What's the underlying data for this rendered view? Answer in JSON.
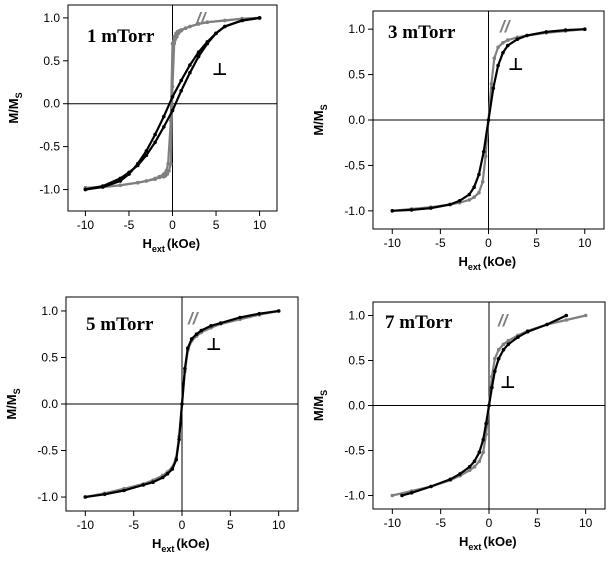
{
  "colors": {
    "parallel": "#808080",
    "perpendicular": "#000000",
    "axis": "#000000"
  },
  "chart_data": [
    {
      "type": "line",
      "title": "1 mTorr",
      "xlabel": "H",
      "xlabel_sub": "ext",
      "xlabel_unit": "(kOe)",
      "ylabel": "M/M",
      "ylabel_sub": "S",
      "xlim": [
        -12,
        12
      ],
      "ylim": [
        -1.25,
        1.15
      ],
      "xticks": [
        -10,
        -5,
        0,
        5,
        10
      ],
      "xtick_labels": [
        "-10",
        "-5",
        "0",
        "5",
        "10"
      ],
      "yticks": [
        -1.0,
        -0.5,
        0.0,
        0.5,
        1.0
      ],
      "ytick_labels": [
        "-1.0",
        "-0.5",
        "0.0",
        "0.5",
        "1.0"
      ],
      "series": [
        {
          "name": "//",
          "kind": "parallel",
          "x": [
            -10,
            -8,
            -6,
            -4,
            -3,
            -2,
            -1.5,
            -1,
            -0.7,
            -0.5,
            -0.2,
            0,
            0.2,
            0.4,
            0.6,
            0.8,
            1,
            1.5,
            2,
            3,
            4,
            6,
            8,
            10
          ],
          "y": [
            -0.98,
            -0.97,
            -0.95,
            -0.92,
            -0.9,
            -0.87,
            -0.85,
            -0.82,
            -0.78,
            -0.7,
            -0.2,
            0.7,
            0.78,
            0.82,
            0.84,
            0.85,
            0.86,
            0.88,
            0.9,
            0.93,
            0.95,
            0.97,
            0.99,
            1.0
          ],
          "x_return": [
            10,
            8,
            6,
            4,
            3,
            2,
            1.5,
            1,
            0.7,
            0.5,
            0.2,
            0,
            -0.2,
            -0.4,
            -0.6,
            -0.8,
            -1,
            -1.5,
            -2,
            -3,
            -4,
            -6,
            -8,
            -10
          ],
          "y_return": [
            1.0,
            0.99,
            0.97,
            0.95,
            0.93,
            0.9,
            0.88,
            0.85,
            0.82,
            0.78,
            0.7,
            0.2,
            -0.7,
            -0.78,
            -0.82,
            -0.84,
            -0.85,
            -0.86,
            -0.88,
            -0.9,
            -0.92,
            -0.95,
            -0.97,
            -0.98
          ]
        },
        {
          "name": "⊥",
          "kind": "perpendicular",
          "x": [
            -10,
            -8,
            -6,
            -5,
            -4,
            -3,
            -2,
            -1,
            0,
            1,
            2,
            3,
            4,
            5,
            6,
            8,
            10
          ],
          "y": [
            -1.0,
            -0.96,
            -0.87,
            -0.8,
            -0.72,
            -0.6,
            -0.45,
            -0.27,
            -0.08,
            0.15,
            0.36,
            0.55,
            0.7,
            0.82,
            0.9,
            0.97,
            1.0
          ],
          "x_return": [
            10,
            8,
            6,
            5,
            4,
            3,
            2,
            1,
            0,
            -1,
            -2,
            -3,
            -4,
            -5,
            -6,
            -8,
            -10
          ],
          "y_return": [
            1.0,
            0.97,
            0.9,
            0.82,
            0.72,
            0.6,
            0.45,
            0.27,
            0.08,
            -0.15,
            -0.36,
            -0.55,
            -0.7,
            -0.82,
            -0.9,
            -0.97,
            -1.0
          ]
        }
      ]
    },
    {
      "type": "line",
      "title": "3 mTorr",
      "xlabel": "H",
      "xlabel_sub": "ext",
      "xlabel_unit": "(kOe)",
      "ylabel": "M/M",
      "ylabel_sub": "S",
      "xlim": [
        -12,
        12
      ],
      "ylim": [
        -1.2,
        1.2
      ],
      "xticks": [
        -10,
        -5,
        0,
        5,
        10
      ],
      "xtick_labels": [
        "-10",
        "-5",
        "0",
        "5",
        "10"
      ],
      "yticks": [
        -1.0,
        -0.5,
        0.0,
        0.5,
        1.0
      ],
      "ytick_labels": [
        "-1.0",
        "-0.5",
        "0.0",
        "0.5",
        "1.0"
      ],
      "series": [
        {
          "name": "//",
          "kind": "parallel",
          "x": [
            -10,
            -8,
            -6,
            -4,
            -3,
            -2,
            -1.5,
            -1,
            -0.6,
            -0.3,
            0,
            0.3,
            0.6,
            1,
            1.5,
            2,
            3,
            4,
            6,
            8,
            10
          ],
          "y": [
            -1.0,
            -0.98,
            -0.96,
            -0.93,
            -0.91,
            -0.88,
            -0.85,
            -0.8,
            -0.68,
            -0.4,
            0.0,
            0.4,
            0.68,
            0.8,
            0.85,
            0.88,
            0.91,
            0.93,
            0.96,
            0.98,
            1.0
          ],
          "x_return": [],
          "y_return": []
        },
        {
          "name": "⊥",
          "kind": "perpendicular",
          "x": [
            -10,
            -8,
            -6,
            -4,
            -3,
            -2,
            -1.5,
            -1,
            -0.5,
            0,
            0.5,
            1,
            1.5,
            2,
            3,
            4,
            6,
            8,
            10
          ],
          "y": [
            -1.0,
            -0.99,
            -0.97,
            -0.93,
            -0.89,
            -0.82,
            -0.74,
            -0.6,
            -0.35,
            0.0,
            0.35,
            0.6,
            0.74,
            0.82,
            0.89,
            0.93,
            0.97,
            0.99,
            1.0
          ],
          "x_return": [],
          "y_return": []
        }
      ]
    },
    {
      "type": "line",
      "title": "5 mTorr",
      "xlabel": "H",
      "xlabel_sub": "ext",
      "xlabel_unit": "(kOe)",
      "ylabel": "M/M",
      "ylabel_sub": "S",
      "xlim": [
        -12,
        12
      ],
      "ylim": [
        -1.15,
        1.15
      ],
      "xticks": [
        -10,
        -5,
        0,
        5,
        10
      ],
      "xtick_labels": [
        "-10",
        "-5",
        "0",
        "5",
        "10"
      ],
      "yticks": [
        -1.0,
        -0.5,
        0.0,
        0.5,
        1.0
      ],
      "ytick_labels": [
        "-1.0",
        "-0.5",
        "0.0",
        "0.5",
        "1.0"
      ],
      "series": [
        {
          "name": "//",
          "kind": "parallel",
          "x": [
            -10,
            -8,
            -6,
            -4,
            -3,
            -2,
            -1.5,
            -1,
            -0.6,
            -0.3,
            0,
            0.3,
            0.6,
            1,
            1.5,
            2,
            3,
            4,
            6,
            8,
            10
          ],
          "y": [
            -1.0,
            -0.96,
            -0.91,
            -0.86,
            -0.82,
            -0.77,
            -0.73,
            -0.68,
            -0.58,
            -0.35,
            0.0,
            0.35,
            0.58,
            0.68,
            0.73,
            0.77,
            0.82,
            0.86,
            0.91,
            0.96,
            1.0
          ],
          "x_return": [],
          "y_return": []
        },
        {
          "name": "⊥",
          "kind": "perpendicular",
          "x": [
            -10,
            -8,
            -6,
            -4,
            -3,
            -2,
            -1.5,
            -1,
            -0.6,
            -0.3,
            0,
            0.3,
            0.6,
            1,
            1.5,
            2,
            3,
            4,
            6,
            8,
            10
          ],
          "y": [
            -1.0,
            -0.97,
            -0.93,
            -0.87,
            -0.84,
            -0.79,
            -0.75,
            -0.7,
            -0.6,
            -0.38,
            0.0,
            0.38,
            0.6,
            0.7,
            0.75,
            0.79,
            0.84,
            0.87,
            0.93,
            0.97,
            1.0
          ],
          "x_return": [],
          "y_return": []
        }
      ]
    },
    {
      "type": "line",
      "title": "7 mTorr",
      "xlabel": "H",
      "xlabel_sub": "ext",
      "xlabel_unit": "(kOe)",
      "ylabel": "M/M",
      "ylabel_sub": "S",
      "xlim": [
        -12,
        12
      ],
      "ylim": [
        -1.15,
        1.15
      ],
      "xticks": [
        -10,
        -5,
        0,
        5,
        10
      ],
      "xtick_labels": [
        "-10",
        "-5",
        "0",
        "5",
        "10"
      ],
      "yticks": [
        -1.0,
        -0.5,
        0.0,
        0.5,
        1.0
      ],
      "ytick_labels": [
        "-1.0",
        "-0.5",
        "0.0",
        "0.5",
        "1.0"
      ],
      "series": [
        {
          "name": "//",
          "kind": "parallel",
          "x": [
            -10,
            -8,
            -6,
            -4,
            -3,
            -2,
            -1.5,
            -1,
            -0.6,
            -0.3,
            0,
            0.3,
            0.6,
            1,
            1.5,
            2,
            3,
            4,
            6,
            8,
            10
          ],
          "y": [
            -1.0,
            -0.95,
            -0.9,
            -0.83,
            -0.78,
            -0.72,
            -0.68,
            -0.62,
            -0.52,
            -0.32,
            0.0,
            0.32,
            0.52,
            0.62,
            0.68,
            0.72,
            0.78,
            0.83,
            0.9,
            0.95,
            1.0
          ],
          "x_return": [],
          "y_return": []
        },
        {
          "name": "⊥",
          "kind": "perpendicular",
          "x": [
            -9,
            -8,
            -6,
            -4,
            -3,
            -2,
            -1.5,
            -1,
            -0.6,
            -0.3,
            0,
            0.3,
            0.6,
            1,
            1.5,
            2,
            3,
            4,
            6,
            8
          ],
          "y": [
            -1.0,
            -0.97,
            -0.9,
            -0.82,
            -0.76,
            -0.68,
            -0.62,
            -0.52,
            -0.38,
            -0.2,
            0.0,
            0.2,
            0.38,
            0.52,
            0.62,
            0.68,
            0.76,
            0.82,
            0.9,
            1.0
          ],
          "x_return": [],
          "y_return": []
        }
      ]
    }
  ]
}
